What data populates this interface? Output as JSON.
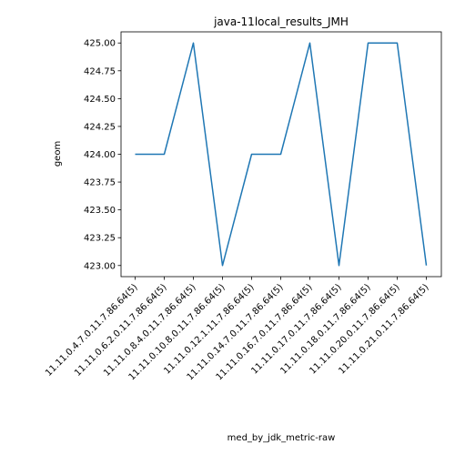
{
  "chart_data": {
    "type": "line",
    "title": "java-11local_results_JMH",
    "xlabel": "med_by_jdk_metric-raw",
    "ylabel": "geom",
    "categories": [
      "11.11.0.4.7.0.11.7.86.64(5)",
      "11.11.0.6.2.0.11.7.86.64(5)",
      "11.11.0.8.4.0.11.7.86.64(5)",
      "11.11.0.10.8.0.11.7.86.64(5)",
      "11.11.0.12.1.11.7.86.64(5)",
      "11.11.0.14.7.0.11.7.86.64(5)",
      "11.11.0.16.7.0.11.7.86.64(5)",
      "11.11.0.17.0.11.7.86.64(5)",
      "11.11.0.18.0.11.7.86.64(5)",
      "11.11.0.20.0.11.7.86.64(5)",
      "11.11.0.21.0.11.7.86.64(5)"
    ],
    "series": [
      {
        "values": [
          424,
          424,
          425,
          423,
          424,
          424,
          425,
          423,
          425,
          425,
          423
        ]
      }
    ],
    "ylim": [
      422.9,
      425.1
    ],
    "yticks": [
      "423.00",
      "423.25",
      "423.50",
      "423.75",
      "424.00",
      "424.25",
      "424.50",
      "424.75",
      "425.00"
    ],
    "grid": false,
    "colors": {
      "line": "#1f77b4",
      "axis": "#000000"
    }
  }
}
